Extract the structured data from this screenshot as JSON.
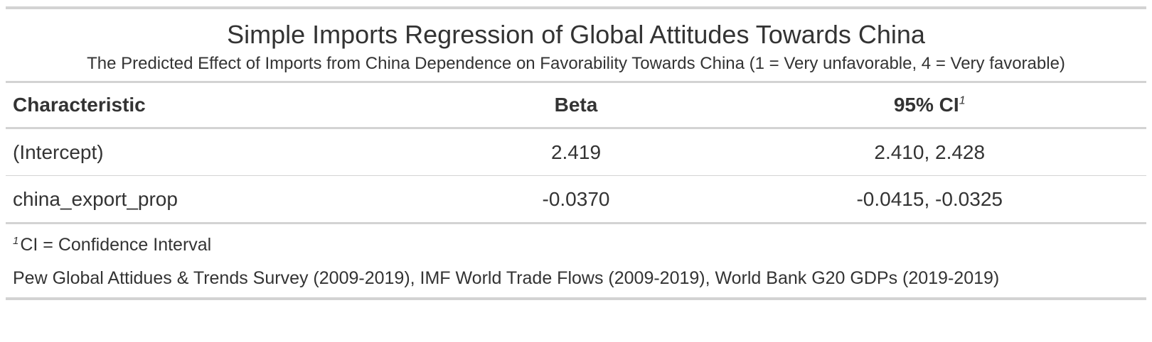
{
  "table": {
    "title": "Simple Imports Regression of Global Attitudes Towards China",
    "subtitle": "The Predicted Effect of Imports from China Dependence on Favorability Towards China (1 = Very unfavorable, 4 = Very favorable)",
    "headers": {
      "characteristic": "Characteristic",
      "beta": "Beta",
      "ci": "95% CI",
      "ci_footnote_mark": "1"
    },
    "rows": [
      {
        "characteristic": "(Intercept)",
        "beta": "2.419",
        "ci": "2.410, 2.428"
      },
      {
        "characteristic": "china_export_prop",
        "beta": "-0.0370",
        "ci": "-0.0415, -0.0325"
      }
    ],
    "footnote": {
      "mark": "1",
      "text": "CI = Confidence Interval"
    },
    "source": "Pew Global Attidues & Trends Survey (2009-2019), IMF World Trade Flows (2009-2019), World Bank G20 GDPs (2019-2019)"
  }
}
